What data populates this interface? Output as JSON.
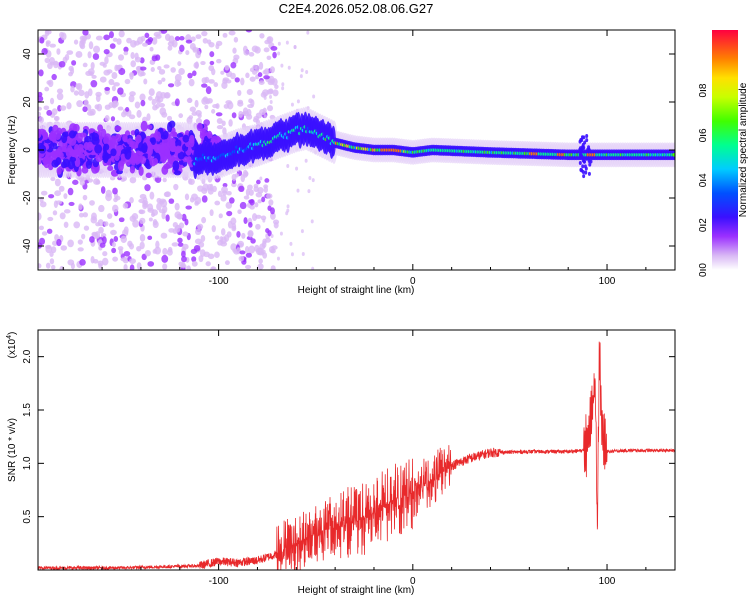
{
  "title": "C2E4.2026.052.08.06.G27",
  "chart_data": [
    {
      "type": "heatmap",
      "name": "spectrogram",
      "xlabel": "Height of straight line (km)",
      "ylabel": "Frequency (Hz)",
      "xlim": [
        -193,
        135
      ],
      "ylim": [
        -50,
        50
      ],
      "xticks": [
        -100,
        0,
        100
      ],
      "xtick_labels": [
        "-100",
        "0",
        "100"
      ],
      "yticks": [
        -40,
        -20,
        0,
        20,
        40
      ],
      "ytick_labels": [
        "-40",
        "-20",
        "0",
        "20",
        "40"
      ],
      "ridge": {
        "description": "dominant frequency trace",
        "x": [
          -110,
          -100,
          -90,
          -80,
          -70,
          -60,
          -55,
          -50,
          -40,
          -30,
          -20,
          -10,
          0,
          10,
          40,
          80,
          88,
          92,
          100,
          135
        ],
        "y": [
          -4,
          -3,
          0,
          2,
          5,
          8,
          9,
          7,
          3,
          1,
          0,
          0,
          -1,
          0,
          -1,
          -2,
          -2,
          -2,
          -2,
          -2
        ]
      },
      "colorbar": {
        "label": "Normalized spectral amplitude",
        "range": [
          0,
          1
        ],
        "ticks": [
          0.0,
          0.2,
          0.4,
          0.6,
          0.8
        ],
        "tick_labels": [
          "0.0",
          "0.2",
          "0.4",
          "0.6",
          "0.8"
        ]
      }
    },
    {
      "type": "line",
      "name": "snr",
      "xlabel": "Height of straight line (km)",
      "ylabel": "SNR (10 * v/v)",
      "scale_label": "(x10",
      "scale_exponent": "4",
      "xlim": [
        -193,
        135
      ],
      "ylim": [
        0,
        22500
      ],
      "xticks": [
        -100,
        0,
        100
      ],
      "xtick_labels": [
        "-100",
        "0",
        "100"
      ],
      "yticks": [
        5000,
        10000,
        15000,
        20000
      ],
      "ytick_labels": [
        "0.5",
        "1.0",
        "1.5",
        "2.0"
      ],
      "color": "#e8292b",
      "series": [
        {
          "name": "SNR",
          "x": [
            -193,
            -150,
            -110,
            -100,
            -90,
            -80,
            -70,
            -60,
            -50,
            -40,
            -30,
            -20,
            -10,
            0,
            10,
            20,
            30,
            40,
            60,
            80,
            88,
            90,
            92,
            94,
            95,
            96,
            98,
            100,
            110,
            120,
            135
          ],
          "y": [
            200,
            200,
            400,
            800,
            700,
            900,
            1500,
            2500,
            3500,
            4000,
            4500,
            5300,
            6500,
            7300,
            8500,
            9800,
            10500,
            11000,
            11100,
            11100,
            11200,
            12000,
            14000,
            17500,
            3000,
            20000,
            11500,
            11100,
            11200,
            11200,
            11200
          ]
        }
      ],
      "noise": [
        {
          "x_start": -193,
          "x_end": -110,
          "amp": 300
        },
        {
          "x_start": -110,
          "x_end": -70,
          "amp": 800
        },
        {
          "x_start": -70,
          "x_end": -40,
          "amp": 3000
        },
        {
          "x_start": -40,
          "x_end": 0,
          "amp": 3500
        },
        {
          "x_start": 0,
          "x_end": 20,
          "amp": 2500
        },
        {
          "x_start": 20,
          "x_end": 45,
          "amp": 900
        },
        {
          "x_start": 45,
          "x_end": 88,
          "amp": 350
        },
        {
          "x_start": 88,
          "x_end": 100,
          "amp": 6000
        },
        {
          "x_start": 100,
          "x_end": 135,
          "amp": 300
        }
      ]
    }
  ]
}
